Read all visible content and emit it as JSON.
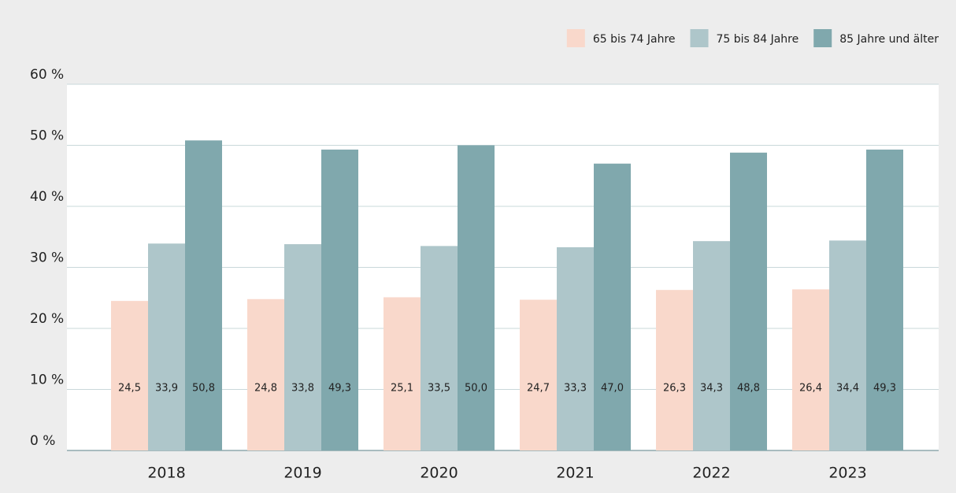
{
  "chart_data": {
    "type": "bar",
    "categories": [
      "2018",
      "2019",
      "2020",
      "2021",
      "2022",
      "2023"
    ],
    "series": [
      {
        "name": "65 bis 74 Jahre",
        "color": "#f9d8cb",
        "values": [
          24.5,
          24.8,
          25.1,
          24.7,
          26.3,
          26.4
        ],
        "value_labels": [
          "24,5",
          "24,8",
          "25,1",
          "24,7",
          "26,3",
          "26,4"
        ]
      },
      {
        "name": "75 bis 84 Jahre",
        "color": "#aec6ca",
        "values": [
          33.9,
          33.8,
          33.5,
          33.3,
          34.3,
          34.4
        ],
        "value_labels": [
          "33,9",
          "33,8",
          "33,5",
          "33,3",
          "34,3",
          "34,4"
        ]
      },
      {
        "name": "85 Jahre und älter",
        "color": "#80a8ad",
        "values": [
          50.8,
          49.3,
          50.0,
          47.0,
          48.8,
          49.3
        ],
        "value_labels": [
          "50,8",
          "49,3",
          "50,0",
          "47,0",
          "48,8",
          "49,3"
        ]
      }
    ],
    "ylim": [
      0,
      60
    ],
    "yticks": [
      {
        "value": 0,
        "label": "0 %"
      },
      {
        "value": 10,
        "label": "10 %"
      },
      {
        "value": 20,
        "label": "20 %"
      },
      {
        "value": 30,
        "label": "30 %"
      },
      {
        "value": 40,
        "label": "40 %"
      },
      {
        "value": 50,
        "label": "50 %"
      },
      {
        "value": 60,
        "label": "60 %"
      }
    ],
    "grid": true,
    "legend": "upper right"
  }
}
